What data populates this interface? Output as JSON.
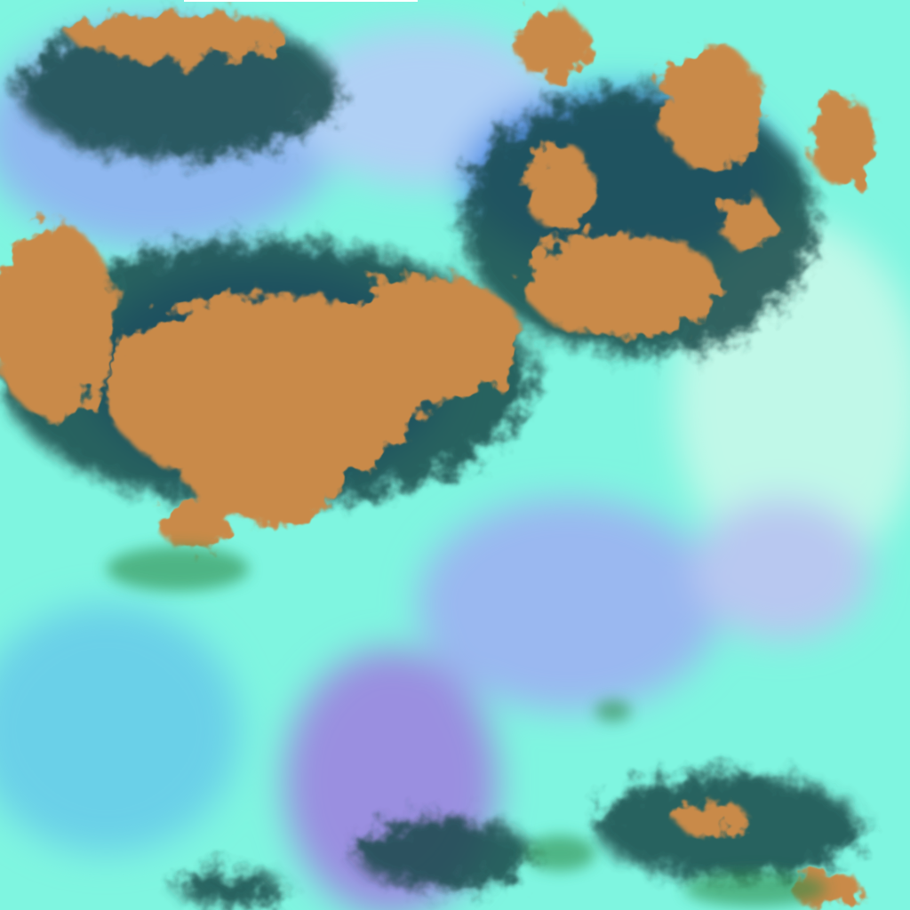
{
  "image": {
    "kind": "false-color satellite imagery",
    "colors": {
      "background_cyan": "#7ff5e0",
      "haze_blue": "#8fb8f0",
      "haze_violet": "#9a8fe0",
      "land_orange": "#c98a4a",
      "shadow_dark": "#1d4a4a",
      "cloud_edge_blue": "#3a7fe0",
      "vegetation_green": "#2e8a4a"
    }
  }
}
